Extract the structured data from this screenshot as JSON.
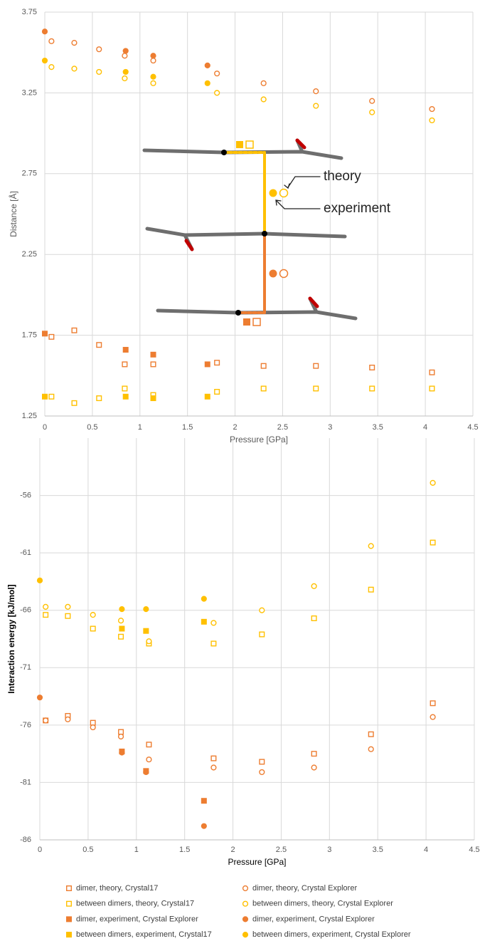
{
  "chart_data": [
    {
      "type": "scatter",
      "xlabel": "Pressure [GPa]",
      "ylabel": "Distance [Å]",
      "xlim": [
        0,
        4.5
      ],
      "xticks": [
        0,
        0.5,
        1,
        1.5,
        2,
        2.5,
        3,
        3.5,
        4,
        4.5
      ],
      "ylim": [
        1.25,
        3.75
      ],
      "yticks": [
        1.25,
        1.75,
        2.25,
        2.75,
        3.25,
        3.75
      ],
      "grid": true,
      "annotations": [
        "theory",
        "experiment"
      ],
      "series": [
        {
          "color": "#ed7d31",
          "marker": "square",
          "filled": false,
          "x": [
            0.07,
            0.31,
            0.57,
            0.84,
            1.14,
            1.81,
            2.3,
            2.85,
            3.44,
            4.07
          ],
          "values": [
            1.74,
            1.78,
            1.69,
            1.57,
            1.57,
            1.58,
            1.56,
            1.56,
            1.55,
            1.52
          ]
        },
        {
          "color": "#ed7d31",
          "marker": "circle",
          "filled": false,
          "x": [
            0.07,
            0.31,
            0.57,
            0.84,
            1.14,
            1.81,
            2.3,
            2.85,
            3.44,
            4.07
          ],
          "values": [
            3.57,
            3.56,
            3.52,
            3.48,
            3.45,
            3.37,
            3.31,
            3.26,
            3.2,
            3.15
          ]
        },
        {
          "color": "#ffc000",
          "marker": "square",
          "filled": false,
          "x": [
            0.07,
            0.31,
            0.57,
            0.84,
            1.14,
            1.81,
            2.3,
            2.85,
            3.44,
            4.07
          ],
          "values": [
            1.37,
            1.33,
            1.36,
            1.42,
            1.38,
            1.4,
            1.42,
            1.42,
            1.42,
            1.42
          ]
        },
        {
          "color": "#ffc000",
          "marker": "circle",
          "filled": false,
          "x": [
            0.07,
            0.31,
            0.57,
            0.84,
            1.14,
            1.81,
            2.3,
            2.85,
            3.44,
            4.07
          ],
          "values": [
            3.41,
            3.4,
            3.38,
            3.34,
            3.31,
            3.25,
            3.21,
            3.17,
            3.13,
            3.08
          ]
        },
        {
          "color": "#ed7d31",
          "marker": "square",
          "filled": true,
          "x": [
            0,
            0.85,
            1.14,
            1.71
          ],
          "values": [
            1.76,
            1.66,
            1.63,
            1.57
          ]
        },
        {
          "color": "#ed7d31",
          "marker": "circle",
          "filled": true,
          "x": [
            0,
            0.85,
            1.14,
            1.71
          ],
          "values": [
            3.63,
            3.51,
            3.48,
            3.42
          ]
        },
        {
          "color": "#ffc000",
          "marker": "square",
          "filled": true,
          "x": [
            0,
            0.85,
            1.14,
            1.71
          ],
          "values": [
            1.37,
            1.37,
            1.36,
            1.37
          ]
        },
        {
          "color": "#ffc000",
          "marker": "circle",
          "filled": true,
          "x": [
            0,
            0.85,
            1.14,
            1.71
          ],
          "values": [
            3.45,
            3.38,
            3.35,
            3.31
          ]
        }
      ]
    },
    {
      "type": "scatter",
      "xlabel": "Pressure [GPa]",
      "ylabel": "Interaction energy [kJ/mol]",
      "xlim": [
        0,
        4.5
      ],
      "xticks": [
        0,
        0.5,
        1,
        1.5,
        2,
        2.5,
        3,
        3.5,
        4,
        4.5
      ],
      "ylim": [
        -86,
        -51
      ],
      "yticks": [
        -86,
        -81,
        -76,
        -71,
        -66,
        -61,
        -56
      ],
      "grid": true,
      "legend": "bottom",
      "series": [
        {
          "name": "dimer, theory, Crystal17",
          "color": "#ed7d31",
          "marker": "square",
          "filled": false,
          "x": [
            0.06,
            0.29,
            0.55,
            0.84,
            1.13,
            1.8,
            2.3,
            2.84,
            3.43,
            4.07
          ],
          "values": [
            -75.6,
            -75.2,
            -75.8,
            -76.6,
            -77.7,
            -78.9,
            -79.2,
            -78.5,
            -76.8,
            -74.1
          ]
        },
        {
          "name": "dimer, theory, Crystal Explorer",
          "color": "#ed7d31",
          "marker": "circle",
          "filled": false,
          "x": [
            0.06,
            0.29,
            0.55,
            0.84,
            1.13,
            1.8,
            2.3,
            2.84,
            3.43,
            4.07
          ],
          "values": [
            -75.6,
            -75.5,
            -76.2,
            -77.0,
            -79.0,
            -79.7,
            -80.1,
            -79.7,
            -78.1,
            -75.3
          ]
        },
        {
          "name": "between dimers, theory, Crystal17",
          "color": "#ffc000",
          "marker": "square",
          "filled": false,
          "x": [
            0.06,
            0.29,
            0.55,
            0.84,
            1.13,
            1.8,
            2.3,
            2.84,
            3.43,
            4.07
          ],
          "values": [
            -66.4,
            -66.5,
            -67.6,
            -68.3,
            -68.9,
            -68.9,
            -68.1,
            -66.7,
            -64.2,
            -60.1
          ]
        },
        {
          "name": "between dimers, theory, Crystal Explorer",
          "color": "#ffc000",
          "marker": "circle",
          "filled": false,
          "x": [
            0.06,
            0.29,
            0.55,
            0.84,
            1.13,
            1.8,
            2.3,
            2.84,
            3.43,
            4.07
          ],
          "values": [
            -65.7,
            -65.7,
            -66.4,
            -66.9,
            -68.7,
            -67.1,
            -66.0,
            -63.9,
            -60.4,
            -54.9
          ]
        },
        {
          "name": "dimer, experiment, Crystal Explorer",
          "color": "#ed7d31",
          "marker": "square",
          "filled": true,
          "x": [
            0.85,
            1.1,
            1.7
          ],
          "values": [
            -78.3,
            -80.0,
            -82.6
          ]
        },
        {
          "name": "dimer, experiment, Crystal Explorer",
          "color": "#ed7d31",
          "marker": "circle",
          "filled": true,
          "x": [
            0,
            0.85,
            1.1,
            1.7
          ],
          "values": [
            -73.6,
            -78.4,
            -80.1,
            -84.8
          ]
        },
        {
          "name": "between dimers, experiment, Crystal17",
          "color": "#ffc000",
          "marker": "square",
          "filled": true,
          "x": [
            0.85,
            1.1,
            1.7
          ],
          "values": [
            -67.6,
            -67.8,
            -67.0
          ]
        },
        {
          "name": "between dimers, experiment, Crystal Explorer",
          "color": "#ffc000",
          "marker": "circle",
          "filled": true,
          "x": [
            0,
            0.85,
            1.1,
            1.7
          ],
          "values": [
            -63.4,
            -65.9,
            -65.9,
            -65.0
          ]
        }
      ]
    }
  ]
}
